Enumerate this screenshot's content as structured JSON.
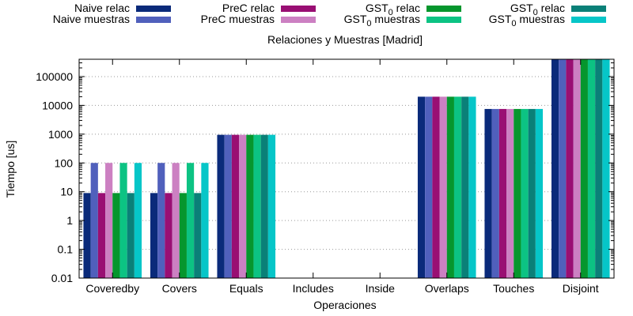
{
  "chart_data": {
    "type": "bar",
    "title": "Relaciones y Muestras [Madrid]",
    "xlabel": "Operaciones",
    "ylabel": "Tiempo [us]",
    "yscale": "log",
    "ylim": [
      0.01,
      400000
    ],
    "grid": "horizontal dotted",
    "legend_position": "top",
    "categories": [
      "Coveredby",
      "Covers",
      "Equals",
      "Includes",
      "Inside",
      "Overlaps",
      "Touches",
      "Disjoint"
    ],
    "yticks": [
      "0.01",
      "0.1",
      "1",
      "10",
      "100",
      "1000",
      "10000",
      "100000"
    ],
    "series": [
      {
        "name": "Naive relac",
        "sub": "",
        "name_after": "",
        "color": "#0a2a7a",
        "values": [
          9,
          9,
          950,
          null,
          null,
          20000,
          7500,
          400000
        ]
      },
      {
        "name": "Naive muestras",
        "sub": "",
        "name_after": "",
        "color": "#5060bc",
        "values": [
          100,
          100,
          950,
          null,
          null,
          20000,
          7500,
          400000
        ]
      },
      {
        "name": "PreC relac",
        "sub": "",
        "name_after": "",
        "color": "#990f73",
        "values": [
          9,
          9,
          950,
          null,
          null,
          20000,
          7500,
          400000
        ]
      },
      {
        "name": "PreC muestras",
        "sub": "",
        "name_after": "",
        "color": "#cc80c2",
        "values": [
          100,
          100,
          950,
          null,
          null,
          20000,
          7500,
          400000
        ]
      },
      {
        "name": "GST",
        "sub": "0",
        "name_after": " relac",
        "color": "#06962d",
        "values": [
          9,
          9,
          950,
          null,
          null,
          20000,
          7500,
          400000
        ]
      },
      {
        "name": "GST",
        "sub": "0",
        "name_after": " muestras",
        "color": "#0cc383",
        "values": [
          100,
          100,
          950,
          null,
          null,
          20000,
          7500,
          400000
        ]
      },
      {
        "name": "GST",
        "sub": "0",
        "name_after": " relac",
        "color": "#0a8078",
        "values": [
          9,
          9,
          950,
          null,
          null,
          20000,
          7500,
          400000
        ]
      },
      {
        "name": "GST",
        "sub": "0",
        "name_after": " muestras",
        "color": "#06c6c8",
        "values": [
          100,
          100,
          950,
          null,
          null,
          20000,
          7500,
          400000
        ]
      }
    ]
  }
}
